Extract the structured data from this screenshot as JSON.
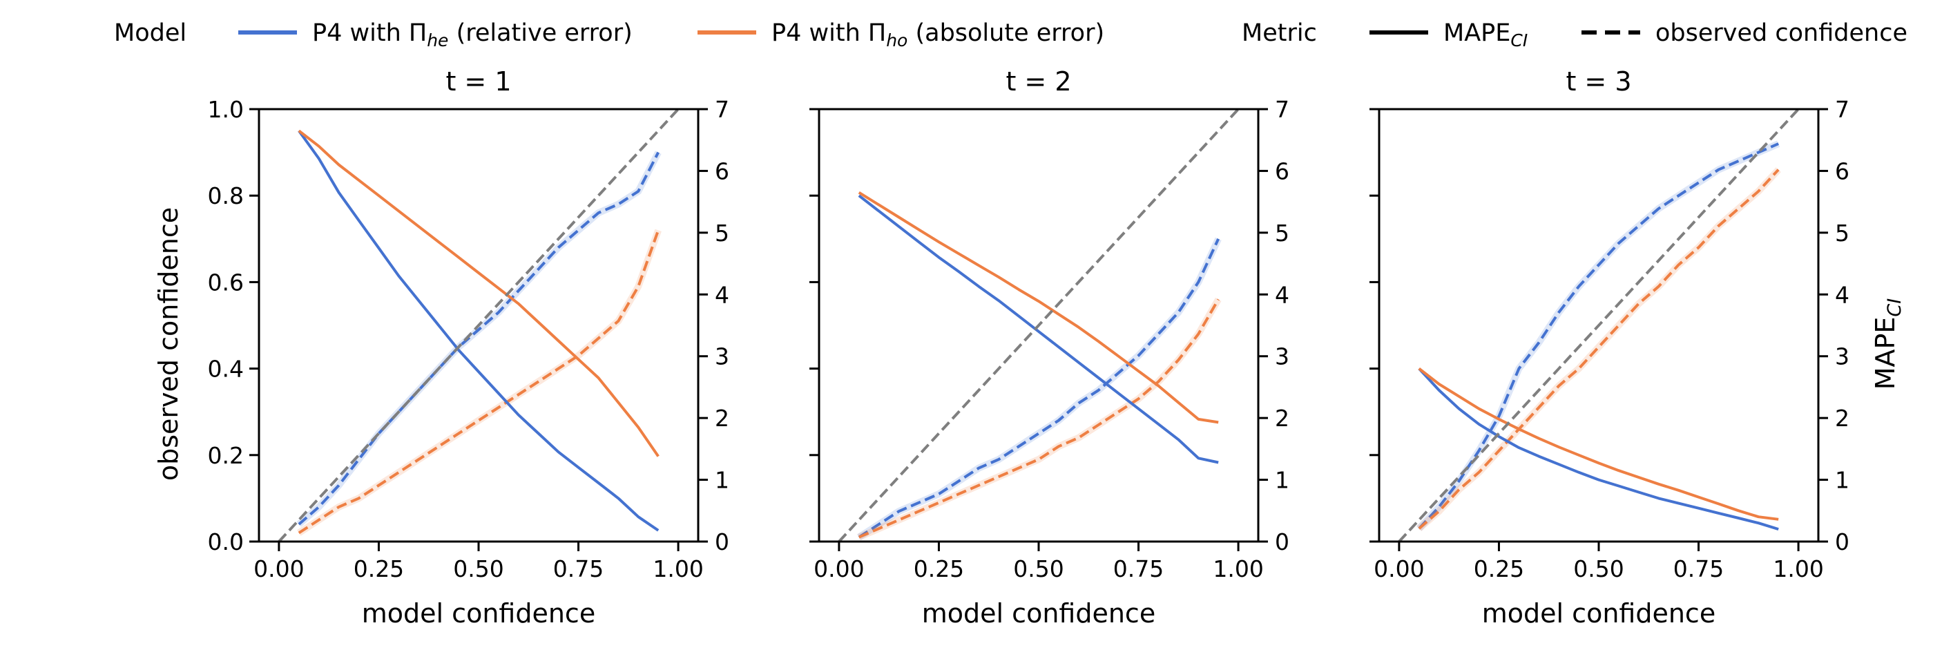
{
  "legend": {
    "model_header": "Model",
    "model_entries": [
      {
        "base": "P4 with Π",
        "sub": "he",
        "suffix": " (relative error)",
        "color": "#4472d0"
      },
      {
        "base": "P4 with Π",
        "sub": "ho",
        "suffix": " (absolute error)",
        "color": "#ee7f43"
      }
    ],
    "metric_header": "Metric",
    "metric_entries": [
      {
        "base": "MAPE",
        "sub": "CI",
        "style": "solid"
      },
      {
        "base": "observed confidence",
        "sub": "",
        "style": "dashed"
      }
    ]
  },
  "axes": {
    "xlabel": "model confidence",
    "ylabel_left": "observed confidence",
    "ylabel_right_base": "MAPE",
    "ylabel_right_sub": "CI",
    "xlim": [
      -0.05,
      1.05
    ],
    "ylim_left": [
      0,
      1
    ],
    "ylim_right": [
      0,
      7
    ],
    "xticks": [
      "0.00",
      "0.25",
      "0.50",
      "0.75",
      "1.00"
    ],
    "yticks_left": [
      "0.0",
      "0.2",
      "0.4",
      "0.6",
      "0.8",
      "1.0"
    ],
    "yticks_right": [
      "0",
      "1",
      "2",
      "3",
      "4",
      "5",
      "6",
      "7"
    ]
  },
  "colors": {
    "he": "#4472d0",
    "ho": "#ee7f43",
    "diagonal": "#7f7f7f"
  },
  "chart_data": [
    {
      "type": "line",
      "title": "t = 1",
      "x": [
        0.05,
        0.1,
        0.15,
        0.2,
        0.25,
        0.3,
        0.35,
        0.4,
        0.45,
        0.5,
        0.55,
        0.6,
        0.65,
        0.7,
        0.75,
        0.8,
        0.85,
        0.9,
        0.95
      ],
      "series": [
        {
          "name": "he_observed",
          "axis": "left",
          "style": "dashed",
          "color_key": "he",
          "values": [
            0.04,
            0.08,
            0.13,
            0.19,
            0.25,
            0.3,
            0.35,
            0.4,
            0.45,
            0.49,
            0.53,
            0.58,
            0.63,
            0.68,
            0.72,
            0.76,
            0.78,
            0.81,
            0.9
          ]
        },
        {
          "name": "ho_observed",
          "axis": "left",
          "style": "dashed",
          "color_key": "ho",
          "values": [
            0.02,
            0.05,
            0.08,
            0.1,
            0.13,
            0.16,
            0.19,
            0.22,
            0.25,
            0.28,
            0.31,
            0.34,
            0.37,
            0.4,
            0.43,
            0.47,
            0.51,
            0.59,
            0.72
          ]
        },
        {
          "name": "he_mape",
          "axis": "right",
          "style": "solid",
          "color_key": "he",
          "values": [
            6.65,
            6.2,
            5.65,
            5.2,
            4.75,
            4.3,
            3.9,
            3.5,
            3.1,
            2.75,
            2.4,
            2.05,
            1.75,
            1.45,
            1.2,
            0.95,
            0.7,
            0.4,
            0.18
          ]
        },
        {
          "name": "ho_mape",
          "axis": "right",
          "style": "solid",
          "color_key": "ho",
          "values": [
            6.65,
            6.4,
            6.1,
            5.85,
            5.6,
            5.35,
            5.1,
            4.85,
            4.6,
            4.35,
            4.1,
            3.85,
            3.55,
            3.25,
            2.95,
            2.65,
            2.25,
            1.85,
            1.38
          ]
        },
        {
          "name": "ideal",
          "axis": "left",
          "style": "dashed",
          "color_key": "diagonal",
          "x": [
            0.0,
            1.0
          ],
          "values": [
            0.0,
            1.0
          ]
        }
      ]
    },
    {
      "type": "line",
      "title": "t = 2",
      "x": [
        0.05,
        0.1,
        0.15,
        0.2,
        0.25,
        0.3,
        0.35,
        0.4,
        0.45,
        0.5,
        0.55,
        0.6,
        0.65,
        0.7,
        0.75,
        0.8,
        0.85,
        0.9,
        0.95
      ],
      "series": [
        {
          "name": "he_observed",
          "axis": "left",
          "style": "dashed",
          "color_key": "he",
          "values": [
            0.01,
            0.04,
            0.07,
            0.09,
            0.11,
            0.14,
            0.17,
            0.19,
            0.22,
            0.25,
            0.28,
            0.32,
            0.35,
            0.39,
            0.43,
            0.48,
            0.53,
            0.6,
            0.7
          ]
        },
        {
          "name": "ho_observed",
          "axis": "left",
          "style": "dashed",
          "color_key": "ho",
          "values": [
            0.01,
            0.03,
            0.05,
            0.07,
            0.09,
            0.11,
            0.13,
            0.15,
            0.17,
            0.19,
            0.22,
            0.24,
            0.27,
            0.3,
            0.33,
            0.37,
            0.42,
            0.48,
            0.56
          ]
        },
        {
          "name": "he_mape",
          "axis": "right",
          "style": "solid",
          "color_key": "he",
          "values": [
            5.6,
            5.35,
            5.1,
            4.85,
            4.6,
            4.37,
            4.13,
            3.9,
            3.65,
            3.4,
            3.15,
            2.9,
            2.65,
            2.4,
            2.15,
            1.9,
            1.65,
            1.35,
            1.28
          ]
        },
        {
          "name": "ho_mape",
          "axis": "right",
          "style": "solid",
          "color_key": "ho",
          "values": [
            5.65,
            5.45,
            5.25,
            5.05,
            4.85,
            4.66,
            4.47,
            4.28,
            4.08,
            3.89,
            3.68,
            3.47,
            3.24,
            3.0,
            2.76,
            2.52,
            2.25,
            1.98,
            1.93
          ]
        },
        {
          "name": "ideal",
          "axis": "left",
          "style": "dashed",
          "color_key": "diagonal",
          "x": [
            0.0,
            1.0
          ],
          "values": [
            0.0,
            1.0
          ]
        }
      ]
    },
    {
      "type": "line",
      "title": "t = 3",
      "x": [
        0.05,
        0.1,
        0.15,
        0.2,
        0.25,
        0.3,
        0.35,
        0.4,
        0.45,
        0.5,
        0.55,
        0.6,
        0.65,
        0.7,
        0.75,
        0.8,
        0.85,
        0.9,
        0.95
      ],
      "series": [
        {
          "name": "he_observed",
          "axis": "left",
          "style": "dashed",
          "color_key": "he",
          "values": [
            0.03,
            0.08,
            0.14,
            0.21,
            0.29,
            0.4,
            0.46,
            0.53,
            0.59,
            0.64,
            0.69,
            0.73,
            0.77,
            0.8,
            0.83,
            0.86,
            0.88,
            0.9,
            0.92
          ]
        },
        {
          "name": "ho_observed",
          "axis": "left",
          "style": "dashed",
          "color_key": "ho",
          "values": [
            0.03,
            0.07,
            0.12,
            0.16,
            0.21,
            0.26,
            0.31,
            0.36,
            0.4,
            0.45,
            0.5,
            0.55,
            0.59,
            0.64,
            0.68,
            0.73,
            0.77,
            0.81,
            0.86
          ]
        },
        {
          "name": "he_mape",
          "axis": "right",
          "style": "solid",
          "color_key": "he",
          "values": [
            2.8,
            2.45,
            2.15,
            1.9,
            1.7,
            1.52,
            1.38,
            1.25,
            1.12,
            1.0,
            0.9,
            0.8,
            0.7,
            0.62,
            0.54,
            0.46,
            0.38,
            0.3,
            0.2
          ]
        },
        {
          "name": "ho_mape",
          "axis": "right",
          "style": "solid",
          "color_key": "ho",
          "values": [
            2.8,
            2.55,
            2.35,
            2.15,
            1.98,
            1.82,
            1.67,
            1.53,
            1.4,
            1.27,
            1.15,
            1.04,
            0.93,
            0.83,
            0.72,
            0.61,
            0.5,
            0.4,
            0.36
          ]
        },
        {
          "name": "ideal",
          "axis": "left",
          "style": "dashed",
          "color_key": "diagonal",
          "x": [
            0.0,
            1.0
          ],
          "values": [
            0.0,
            1.0
          ]
        }
      ]
    }
  ]
}
